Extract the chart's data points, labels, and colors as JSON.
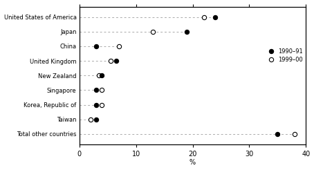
{
  "categories": [
    "United States of America",
    "Japan",
    "China",
    "United Kingdom",
    "New Zealand",
    "Singapore",
    "Korea, Republic of",
    "Taiwan",
    "Total other countries"
  ],
  "values_1990_91": [
    24.0,
    19.0,
    3.0,
    6.5,
    4.0,
    3.0,
    3.0,
    3.0,
    35.0
  ],
  "values_1999_00": [
    22.0,
    13.0,
    7.0,
    5.5,
    3.5,
    4.0,
    4.0,
    2.0,
    38.0
  ],
  "xlabel": "%",
  "xlim": [
    0,
    40
  ],
  "xticks": [
    0,
    10,
    20,
    30,
    40
  ],
  "legend_labels": [
    "1990–91",
    "1999–00"
  ],
  "color_filled": "black",
  "color_open": "white",
  "line_color": "#aaaaaa",
  "background_color": "#ffffff",
  "figsize": [
    4.54,
    2.46
  ],
  "dpi": 100
}
